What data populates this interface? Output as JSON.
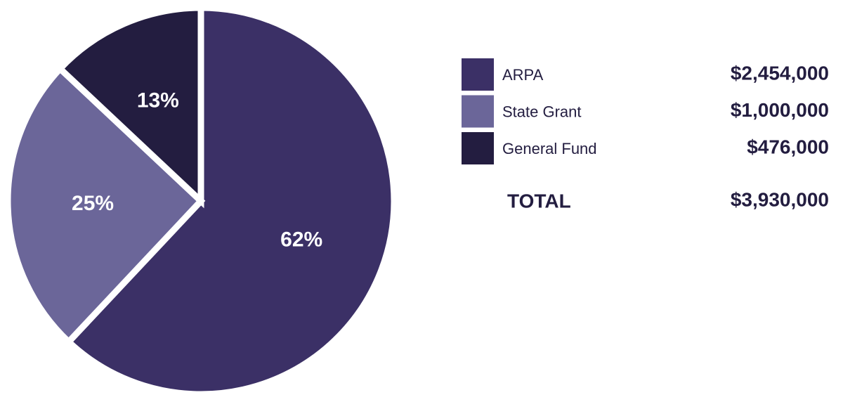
{
  "chart_data": {
    "type": "pie",
    "categories": [
      "ARPA",
      "State Grant",
      "General Fund"
    ],
    "values": [
      62,
      25,
      13
    ],
    "value_labels": [
      "62%",
      "25%",
      "13%"
    ],
    "colors": [
      "#3b3066",
      "#6b6699",
      "#231d40"
    ],
    "amounts": [
      "$2,454,000",
      "$1,000,000",
      "$476,000"
    ],
    "total_label": "TOTAL",
    "total": "$3,930,000"
  }
}
